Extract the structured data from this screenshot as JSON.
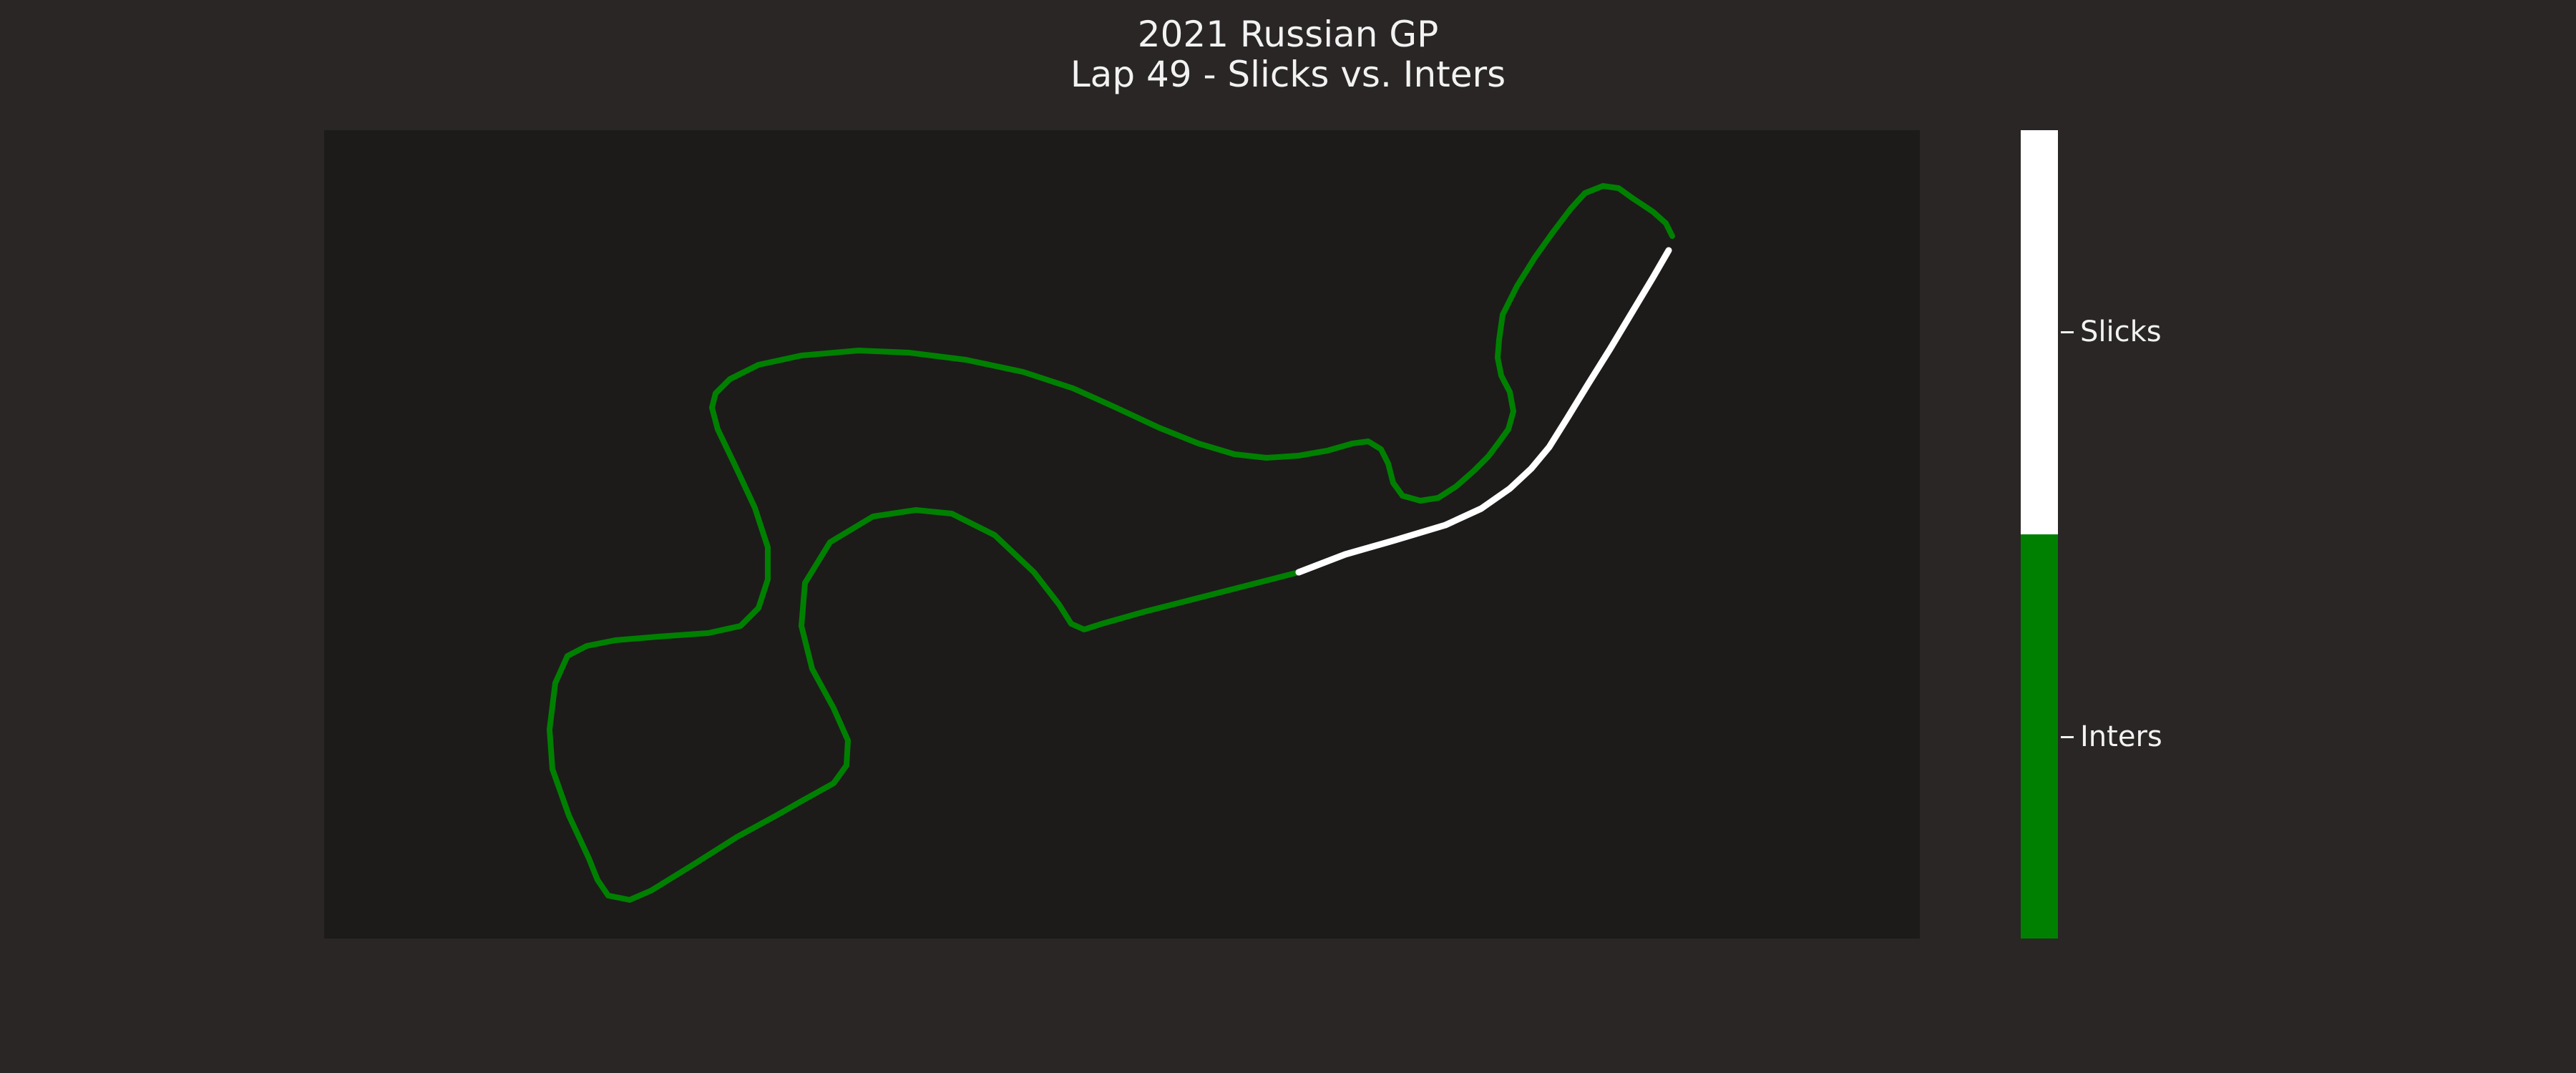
{
  "title": {
    "line1": "2021 Russian GP",
    "line2": "Lap 49 - Slicks vs. Inters"
  },
  "colors": {
    "background": "#292625",
    "plot_background": "#1c1b1a",
    "inters": "#008000",
    "slicks": "#ffffff"
  },
  "chart_data": {
    "type": "line",
    "title": "2021 Russian GP Lap 49 - Slicks vs. Inters",
    "xlabel": "",
    "ylabel": "",
    "grid": false,
    "axes_visible": false,
    "colorbar": {
      "position": "right",
      "categories": [
        "Inters",
        "Slicks"
      ],
      "colors": [
        "#008000",
        "#ffffff"
      ],
      "range": [
        0,
        2
      ]
    },
    "series": [
      {
        "name": "Inters",
        "compound": 1,
        "color": "#008000",
        "points": [
          [
            1815,
            800
          ],
          [
            1600,
            855
          ],
          [
            1540,
            872
          ],
          [
            1515,
            880
          ],
          [
            1497,
            872
          ],
          [
            1480,
            845
          ],
          [
            1445,
            800
          ],
          [
            1390,
            748
          ],
          [
            1330,
            718
          ],
          [
            1280,
            713
          ],
          [
            1220,
            722
          ],
          [
            1160,
            758
          ],
          [
            1125,
            815
          ],
          [
            1120,
            875
          ],
          [
            1135,
            935
          ],
          [
            1165,
            990
          ],
          [
            1185,
            1035
          ],
          [
            1183,
            1070
          ],
          [
            1165,
            1095
          ],
          [
            1120,
            1120
          ],
          [
            1085,
            1140
          ],
          [
            1030,
            1170
          ],
          [
            970,
            1208
          ],
          [
            910,
            1245
          ],
          [
            880,
            1258
          ],
          [
            850,
            1252
          ],
          [
            835,
            1230
          ],
          [
            823,
            1200
          ],
          [
            795,
            1140
          ],
          [
            772,
            1075
          ],
          [
            768,
            1020
          ],
          [
            776,
            955
          ],
          [
            793,
            917
          ],
          [
            820,
            903
          ],
          [
            860,
            895
          ],
          [
            920,
            890
          ],
          [
            990,
            885
          ],
          [
            1035,
            875
          ],
          [
            1060,
            850
          ],
          [
            1073,
            810
          ],
          [
            1073,
            765
          ],
          [
            1055,
            710
          ],
          [
            1027,
            650
          ],
          [
            1003,
            600
          ],
          [
            995,
            570
          ],
          [
            1000,
            550
          ],
          [
            1020,
            530
          ],
          [
            1060,
            510
          ],
          [
            1120,
            497
          ],
          [
            1200,
            490
          ],
          [
            1270,
            493
          ],
          [
            1350,
            503
          ],
          [
            1430,
            520
          ],
          [
            1500,
            543
          ],
          [
            1560,
            570
          ],
          [
            1620,
            598
          ],
          [
            1675,
            620
          ],
          [
            1725,
            635
          ],
          [
            1770,
            640
          ],
          [
            1815,
            637
          ],
          [
            1855,
            630
          ],
          [
            1890,
            620
          ],
          [
            1912,
            617
          ],
          [
            1930,
            628
          ],
          [
            1940,
            648
          ],
          [
            1947,
            675
          ],
          [
            1960,
            693
          ],
          [
            1985,
            700
          ],
          [
            2010,
            696
          ],
          [
            2035,
            680
          ],
          [
            2060,
            658
          ],
          [
            2080,
            638
          ],
          [
            2095,
            618
          ],
          [
            2108,
            600
          ],
          [
            2115,
            575
          ],
          [
            2110,
            548
          ],
          [
            2098,
            525
          ],
          [
            2093,
            500
          ],
          [
            2095,
            475
          ],
          [
            2100,
            440
          ],
          [
            2120,
            400
          ],
          [
            2145,
            360
          ],
          [
            2170,
            325
          ],
          [
            2195,
            292
          ],
          [
            2215,
            270
          ],
          [
            2240,
            260
          ],
          [
            2262,
            263
          ],
          [
            2280,
            276
          ],
          [
            2310,
            296
          ],
          [
            2328,
            312
          ],
          [
            2337,
            330
          ]
        ]
      },
      {
        "name": "Slicks",
        "compound": 0,
        "color": "#ffffff",
        "points": [
          [
            2332,
            350
          ],
          [
            2310,
            388
          ],
          [
            2280,
            438
          ],
          [
            2250,
            488
          ],
          [
            2220,
            536
          ],
          [
            2190,
            585
          ],
          [
            2165,
            625
          ],
          [
            2140,
            655
          ],
          [
            2110,
            683
          ],
          [
            2070,
            711
          ],
          [
            2020,
            734
          ],
          [
            1950,
            755
          ],
          [
            1880,
            775
          ],
          [
            1815,
            800
          ]
        ]
      }
    ]
  },
  "colorbar_labels": {
    "slicks": "Slicks",
    "inters": "Inters"
  }
}
